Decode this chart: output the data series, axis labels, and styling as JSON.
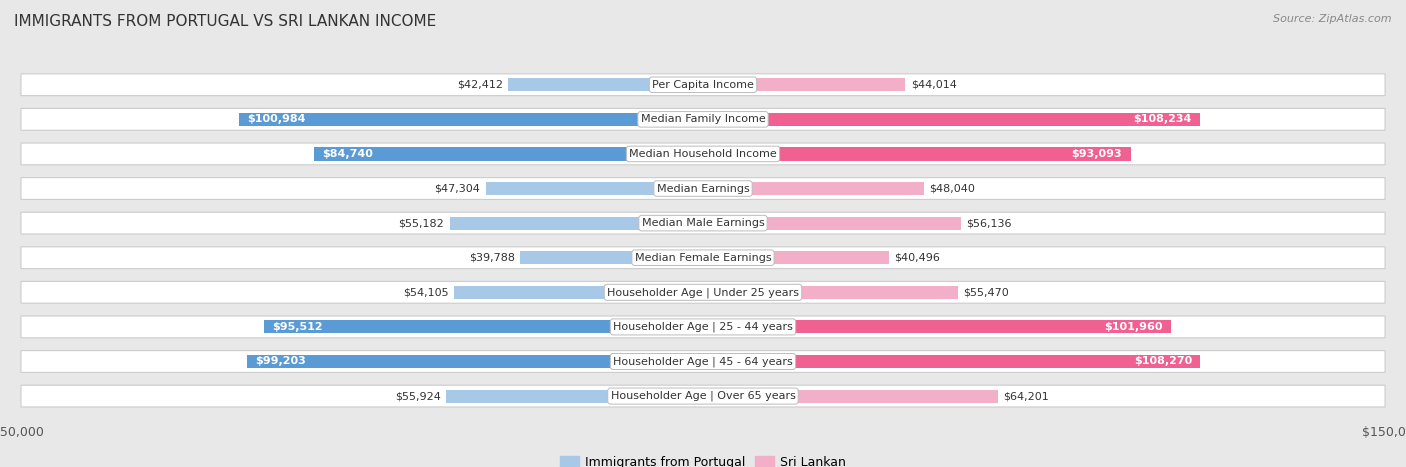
{
  "title": "IMMIGRANTS FROM PORTUGAL VS SRI LANKAN INCOME",
  "source": "Source: ZipAtlas.com",
  "categories": [
    "Per Capita Income",
    "Median Family Income",
    "Median Household Income",
    "Median Earnings",
    "Median Male Earnings",
    "Median Female Earnings",
    "Householder Age | Under 25 years",
    "Householder Age | 25 - 44 years",
    "Householder Age | 45 - 64 years",
    "Householder Age | Over 65 years"
  ],
  "portugal_values": [
    42412,
    100984,
    84740,
    47304,
    55182,
    39788,
    54105,
    95512,
    99203,
    55924
  ],
  "srilanka_values": [
    44014,
    108234,
    93093,
    48040,
    56136,
    40496,
    55470,
    101960,
    108270,
    64201
  ],
  "portugal_labels": [
    "$42,412",
    "$100,984",
    "$84,740",
    "$47,304",
    "$55,182",
    "$39,788",
    "$54,105",
    "$95,512",
    "$99,203",
    "$55,924"
  ],
  "srilanka_labels": [
    "$44,014",
    "$108,234",
    "$93,093",
    "$48,040",
    "$56,136",
    "$40,496",
    "$55,470",
    "$101,960",
    "$108,270",
    "$64,201"
  ],
  "portugal_color_light": "#a8c8e8",
  "portugal_color_dark": "#5b9bd5",
  "srilanka_color_light": "#f4afc8",
  "srilanka_color_dark": "#f06090",
  "max_value": 150000,
  "bg_color": "#e8e8e8",
  "row_color": "#ffffff",
  "row_alt_color": "#f0f0f0",
  "title_fontsize": 11,
  "source_fontsize": 8,
  "bar_label_fontsize": 8,
  "category_fontsize": 8,
  "axis_label_fontsize": 9,
  "large_threshold": 65000
}
